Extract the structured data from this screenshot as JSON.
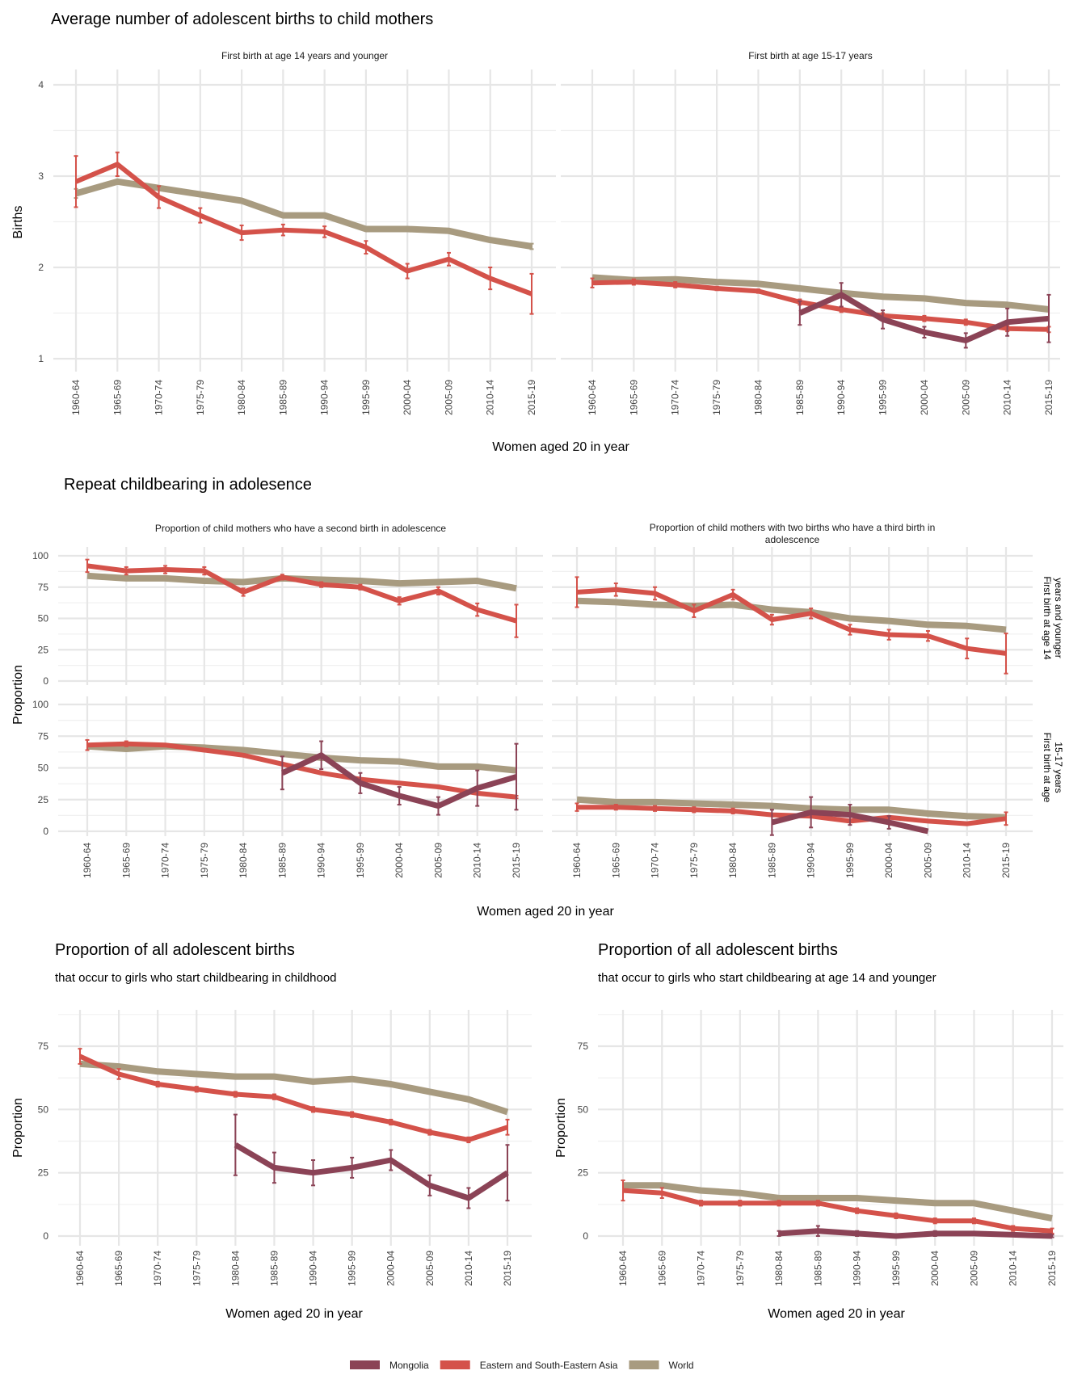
{
  "colors": {
    "Mongolia": "#8b4356",
    "Eastern and South-Eastern Asia": "#d4524a",
    "World": "#a89b80"
  },
  "sections": [
    {
      "title": "Average number of adolescent births to child mothers",
      "ylabel": "Births",
      "xlabel": "Women aged 20 in year"
    },
    {
      "title": "Repeat childbearing in adolesence",
      "ylabel": "Proportion",
      "xlabel": "Women aged 20 in year",
      "row_strips": [
        [
          "First birth at age 14",
          "years and younger"
        ],
        [
          "First birth at age",
          "15-17 years"
        ]
      ]
    }
  ],
  "legend": [
    "Mongolia",
    "Eastern and South-Eastern Asia",
    "World"
  ],
  "chart_data": [
    {
      "type": "line",
      "strip": [
        "First birth at age 14 years and younger"
      ],
      "ylim": [
        0.85,
        4.1
      ],
      "yticks": [
        1,
        2,
        3,
        4
      ],
      "categories": [
        "1960-64",
        "1965-69",
        "1970-74",
        "1975-79",
        "1980-84",
        "1985-89",
        "1990-94",
        "1995-99",
        "2000-04",
        "2005-09",
        "2010-14",
        "2015-19"
      ],
      "series": [
        {
          "name": "World",
          "values": [
            2.81,
            2.94,
            2.87,
            2.8,
            2.73,
            2.57,
            2.57,
            2.42,
            2.42,
            2.4,
            2.3,
            2.23
          ],
          "err": [
            0.05,
            0,
            0,
            0,
            0,
            0,
            0,
            0,
            0,
            0,
            0,
            0.03
          ]
        },
        {
          "name": "Eastern and South-Eastern Asia",
          "values": [
            2.94,
            3.13,
            2.77,
            2.57,
            2.38,
            2.41,
            2.39,
            2.22,
            1.96,
            2.09,
            1.88,
            1.71
          ],
          "err": [
            0.28,
            0.13,
            0.12,
            0.08,
            0.08,
            0.06,
            0.06,
            0.07,
            0.08,
            0.07,
            0.12,
            0.22
          ]
        }
      ]
    },
    {
      "type": "line",
      "strip": [
        "First birth at age 15-17 years"
      ],
      "ylim": [
        0.85,
        4.1
      ],
      "yticks": [
        1,
        2,
        3,
        4
      ],
      "categories": [
        "1960-64",
        "1965-69",
        "1970-74",
        "1975-79",
        "1980-84",
        "1985-89",
        "1990-94",
        "1995-99",
        "2000-04",
        "2005-09",
        "2010-14",
        "2015-19"
      ],
      "series": [
        {
          "name": "World",
          "values": [
            1.89,
            1.86,
            1.87,
            1.84,
            1.82,
            1.77,
            1.72,
            1.68,
            1.66,
            1.61,
            1.59,
            1.54
          ]
        },
        {
          "name": "Eastern and South-Eastern Asia",
          "values": [
            1.83,
            1.84,
            1.81,
            1.77,
            1.74,
            1.62,
            1.54,
            1.47,
            1.44,
            1.4,
            1.33,
            1.32
          ],
          "err": [
            0.05,
            0.03,
            0.03,
            0.02,
            0.02,
            0.03,
            0.03,
            0.03,
            0.03,
            0.03,
            0.03,
            0.03
          ]
        },
        {
          "name": "Mongolia",
          "values": [
            null,
            null,
            null,
            null,
            null,
            1.5,
            1.7,
            1.43,
            1.29,
            1.2,
            1.4,
            1.44
          ],
          "err": [
            0,
            0,
            0,
            0,
            0,
            0.13,
            0.13,
            0.1,
            0.06,
            0.08,
            0.15,
            0.26
          ]
        }
      ]
    },
    {
      "type": "line",
      "strip": [
        "Proportion of child mothers who have a second birth in adolescence"
      ],
      "ylim": [
        -2,
        105
      ],
      "yticks": [
        0,
        25,
        50,
        75,
        100
      ],
      "categories": [
        "1960-64",
        "1965-69",
        "1970-74",
        "1975-79",
        "1980-84",
        "1985-89",
        "1990-94",
        "1995-99",
        "2000-04",
        "2005-09",
        "2010-14",
        "2015-19"
      ],
      "series": [
        {
          "name": "World",
          "values": [
            84,
            82,
            82,
            80,
            79,
            82,
            81,
            80,
            78,
            79,
            80,
            74
          ]
        },
        {
          "name": "Eastern and South-Eastern Asia",
          "values": [
            92,
            88,
            89,
            88,
            71,
            83,
            77,
            75,
            64,
            72,
            57,
            48
          ],
          "err": [
            5,
            3,
            3,
            3,
            3,
            2,
            2,
            2,
            3,
            3,
            5,
            13
          ]
        }
      ]
    },
    {
      "type": "line",
      "strip": [
        "Proportion of child mothers with two births who have a third birth in",
        "adolescence"
      ],
      "ylim": [
        -2,
        105
      ],
      "yticks": [
        0,
        25,
        50,
        75,
        100
      ],
      "categories": [
        "1960-64",
        "1965-69",
        "1970-74",
        "1975-79",
        "1980-84",
        "1985-89",
        "1990-94",
        "1995-99",
        "2000-04",
        "2005-09",
        "2010-14",
        "2015-19"
      ],
      "series": [
        {
          "name": "World",
          "values": [
            64,
            63,
            61,
            60,
            61,
            57,
            55,
            50,
            48,
            45,
            44,
            41
          ]
        },
        {
          "name": "Eastern and South-Eastern Asia",
          "values": [
            71,
            73,
            70,
            56,
            69,
            49,
            54,
            41,
            37,
            36,
            26,
            22
          ],
          "err": [
            12,
            5,
            5,
            5,
            4,
            4,
            4,
            4,
            4,
            4,
            8,
            16
          ]
        }
      ]
    },
    {
      "type": "line",
      "strip": [],
      "ylim": [
        -2,
        105
      ],
      "yticks": [
        0,
        25,
        50,
        75,
        100
      ],
      "categories": [
        "1960-64",
        "1965-69",
        "1970-74",
        "1975-79",
        "1980-84",
        "1985-89",
        "1990-94",
        "1995-99",
        "2000-04",
        "2005-09",
        "2010-14",
        "2015-19"
      ],
      "series": [
        {
          "name": "World",
          "values": [
            67,
            65,
            67,
            66,
            64,
            61,
            58,
            56,
            55,
            51,
            51,
            48
          ]
        },
        {
          "name": "Eastern and South-Eastern Asia",
          "values": [
            68,
            69,
            68,
            64,
            60,
            53,
            46,
            41,
            38,
            35,
            30,
            27
          ],
          "err": [
            4,
            2,
            1,
            1,
            1,
            1,
            1,
            1,
            1,
            1,
            1,
            1
          ]
        },
        {
          "name": "Mongolia",
          "values": [
            null,
            null,
            null,
            null,
            null,
            46,
            60,
            38,
            28,
            20,
            34,
            43
          ],
          "err": [
            0,
            0,
            0,
            0,
            0,
            13,
            11,
            8,
            7,
            7,
            14,
            26
          ]
        }
      ]
    },
    {
      "type": "line",
      "strip": [],
      "ylim": [
        -2,
        105
      ],
      "yticks": [
        0,
        25,
        50,
        75,
        100
      ],
      "categories": [
        "1960-64",
        "1965-69",
        "1970-74",
        "1975-79",
        "1980-84",
        "1985-89",
        "1990-94",
        "1995-99",
        "2000-04",
        "2005-09",
        "2010-14",
        "2015-19"
      ],
      "series": [
        {
          "name": "World",
          "values": [
            25,
            23,
            23,
            22,
            21,
            20,
            18,
            17,
            17,
            14,
            12,
            11
          ]
        },
        {
          "name": "Eastern and South-Eastern Asia",
          "values": [
            19,
            19,
            18,
            17,
            16,
            13,
            12,
            8,
            11,
            8,
            6,
            10
          ],
          "err": [
            3,
            2,
            2,
            2,
            2,
            1,
            1,
            1,
            1,
            1,
            1,
            5
          ]
        },
        {
          "name": "Mongolia",
          "values": [
            null,
            null,
            null,
            null,
            null,
            7,
            15,
            13,
            7,
            0,
            null,
            null
          ],
          "err": [
            0,
            0,
            0,
            0,
            0,
            10,
            12,
            8,
            5,
            0,
            0,
            0
          ]
        }
      ]
    },
    {
      "type": "line",
      "title": "Proportion of all adolescent births",
      "subtitle": "that occur to girls who start childbearing in childhood",
      "ylabel": "Proportion",
      "xlabel": "Women aged 20 in year",
      "ylim": [
        -2,
        89
      ],
      "yticks": [
        0,
        25,
        50,
        75
      ],
      "categories": [
        "1960-64",
        "1965-69",
        "1970-74",
        "1975-79",
        "1980-84",
        "1985-89",
        "1990-94",
        "1995-99",
        "2000-04",
        "2005-09",
        "2010-14",
        "2015-19"
      ],
      "series": [
        {
          "name": "World",
          "values": [
            68,
            67,
            65,
            64,
            63,
            63,
            61,
            62,
            60,
            57,
            54,
            49
          ]
        },
        {
          "name": "Eastern and South-Eastern Asia",
          "values": [
            71,
            64,
            60,
            58,
            56,
            55,
            50,
            48,
            45,
            41,
            38,
            43
          ],
          "err": [
            3,
            2,
            1,
            1,
            1,
            1,
            1,
            1,
            1,
            1,
            1,
            3
          ]
        },
        {
          "name": "Mongolia",
          "values": [
            null,
            null,
            null,
            null,
            36,
            27,
            25,
            27,
            30,
            20,
            15,
            25
          ],
          "err": [
            0,
            0,
            0,
            0,
            12,
            6,
            5,
            4,
            4,
            4,
            4,
            11
          ]
        }
      ]
    },
    {
      "type": "line",
      "title": "Proportion of all adolescent births",
      "subtitle": "that occur to girls who start childbearing at age 14 and younger",
      "ylabel": "Proportion",
      "xlabel": "Women aged 20 in year",
      "ylim": [
        -2,
        89
      ],
      "yticks": [
        0,
        25,
        50,
        75
      ],
      "categories": [
        "1960-64",
        "1965-69",
        "1970-74",
        "1975-79",
        "1980-84",
        "1985-89",
        "1990-94",
        "1995-99",
        "2000-04",
        "2005-09",
        "2010-14",
        "2015-19"
      ],
      "series": [
        {
          "name": "World",
          "values": [
            20,
            20,
            18,
            17,
            15,
            15,
            15,
            14,
            13,
            13,
            10,
            7
          ]
        },
        {
          "name": "Eastern and South-Eastern Asia",
          "values": [
            18,
            17,
            13,
            13,
            13,
            13,
            10,
            8,
            6,
            6,
            3,
            2
          ],
          "err": [
            4,
            2,
            1,
            1,
            1,
            1,
            1,
            1,
            1,
            1,
            1,
            1
          ]
        },
        {
          "name": "Mongolia",
          "values": [
            null,
            null,
            null,
            null,
            1,
            2,
            1,
            0,
            1,
            1,
            0.5,
            0
          ],
          "err": [
            0,
            0,
            0,
            0,
            1,
            2,
            1,
            0.5,
            1,
            0.5,
            0.5,
            0.5
          ]
        }
      ]
    }
  ]
}
